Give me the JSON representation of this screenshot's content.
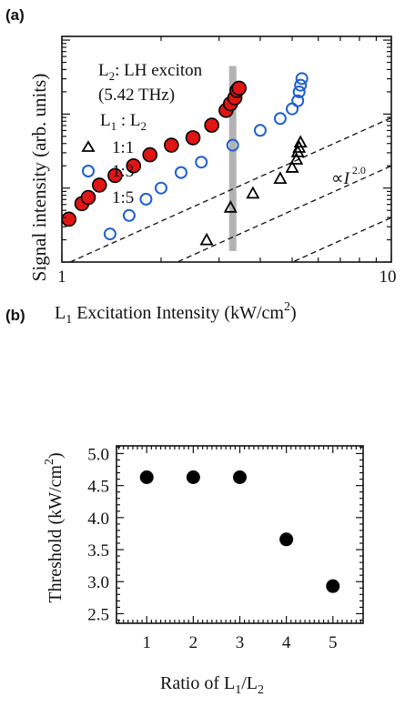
{
  "chart_data": [
    {
      "type": "scatter",
      "panel_label": "(a)",
      "ylabel": "Signal intensity (arb. units)",
      "xlabel": "L1 Excitation Intensity (kW/cm2)",
      "xlabel_parts": {
        "pre": "L",
        "sub": "1",
        "mid": " Excitation Intensity (kW/cm",
        "sup": "2",
        "post": ")"
      },
      "x_scale": "log",
      "xlim": [
        1,
        10
      ],
      "y_scale": "log",
      "ylim_decades": [
        0,
        3.05
      ],
      "x_tick_labels": [
        {
          "value": 1,
          "label": "1"
        },
        {
          "value": 10,
          "label": "10"
        }
      ],
      "annotation_text": {
        "line1_pre": "L",
        "line1_sub": "2",
        "line1_post": ": LH exciton",
        "line2": "(5.42 THz)",
        "ratio_pre": "L",
        "ratio_sub1": "1",
        "ratio_mid": " : L",
        "ratio_sub2": "2"
      },
      "slope_label": {
        "prefix": "∝",
        "var": "I",
        "exp": "2.0"
      },
      "highlight_band_x": 3.3,
      "legend_placement": "top-left",
      "series": [
        {
          "name": "1:1",
          "marker": "triangle",
          "color": "#000000",
          "fill": "none",
          "points": [
            [
              2.75,
              0.3
            ],
            [
              3.25,
              0.74
            ],
            [
              3.8,
              0.93
            ],
            [
              4.6,
              1.13
            ],
            [
              5.0,
              1.28
            ],
            [
              5.15,
              1.39
            ],
            [
              5.2,
              1.49
            ],
            [
              5.25,
              1.55
            ],
            [
              5.3,
              1.62
            ]
          ]
        },
        {
          "name": "1:3",
          "marker": "circle",
          "color": "#1f5fd1",
          "fill": "none",
          "points": [
            [
              1.4,
              0.38
            ],
            [
              1.6,
              0.63
            ],
            [
              1.8,
              0.85
            ],
            [
              2.0,
              1.0
            ],
            [
              2.3,
              1.21
            ],
            [
              2.65,
              1.35
            ],
            [
              3.3,
              1.58
            ],
            [
              4.0,
              1.78
            ],
            [
              4.6,
              1.94
            ],
            [
              5.0,
              2.07
            ],
            [
              5.2,
              2.18
            ],
            [
              5.25,
              2.3
            ],
            [
              5.3,
              2.39
            ],
            [
              5.35,
              2.48
            ]
          ]
        },
        {
          "name": "1:5",
          "marker": "filled-circle",
          "color": "#000000",
          "fill": "#e01515",
          "points": [
            [
              1.05,
              0.58
            ],
            [
              1.15,
              0.79
            ],
            [
              1.3,
              1.04
            ],
            [
              1.45,
              1.17
            ],
            [
              1.65,
              1.3
            ],
            [
              1.85,
              1.45
            ],
            [
              2.15,
              1.58
            ],
            [
              2.5,
              1.68
            ],
            [
              2.85,
              1.85
            ],
            [
              3.15,
              2.05
            ],
            [
              3.25,
              2.14
            ],
            [
              3.35,
              2.22
            ],
            [
              3.4,
              2.32
            ],
            [
              3.45,
              2.35
            ]
          ]
        }
      ],
      "fit_lines": [
        {
          "slope": 2.0,
          "intercept": -0.05
        },
        {
          "slope": 2.0,
          "intercept": -0.7
        },
        {
          "slope": 2.0,
          "intercept": -1.4
        }
      ]
    },
    {
      "type": "scatter",
      "panel_label": "(b)",
      "ylabel": "Threshold (kW/cm2)",
      "ylabel_parts": {
        "pre": "Threshold (kW/cm",
        "sup": "2",
        "post": ")"
      },
      "xlabel": "Ratio of L1/L2",
      "xlabel_parts": {
        "pre": "Ratio of L",
        "sub1": "1",
        "mid": "/L",
        "sub2": "2"
      },
      "xlim": [
        0.35,
        5.65
      ],
      "ylim": [
        2.35,
        5.12
      ],
      "x_ticks": [
        1,
        2,
        3,
        4,
        5
      ],
      "y_ticks": [
        2.5,
        3.0,
        3.5,
        4.0,
        4.5,
        5.0
      ],
      "y_tick_labels": [
        "2.5",
        "3.0",
        "3.5",
        "4.0",
        "4.5",
        "5.0"
      ],
      "x_tick_labels": [
        "1",
        "2",
        "3",
        "4",
        "5"
      ],
      "marker_color": "#000000",
      "x": [
        1,
        2,
        3,
        4,
        5
      ],
      "y": [
        4.63,
        4.63,
        4.63,
        3.66,
        2.93
      ]
    }
  ]
}
